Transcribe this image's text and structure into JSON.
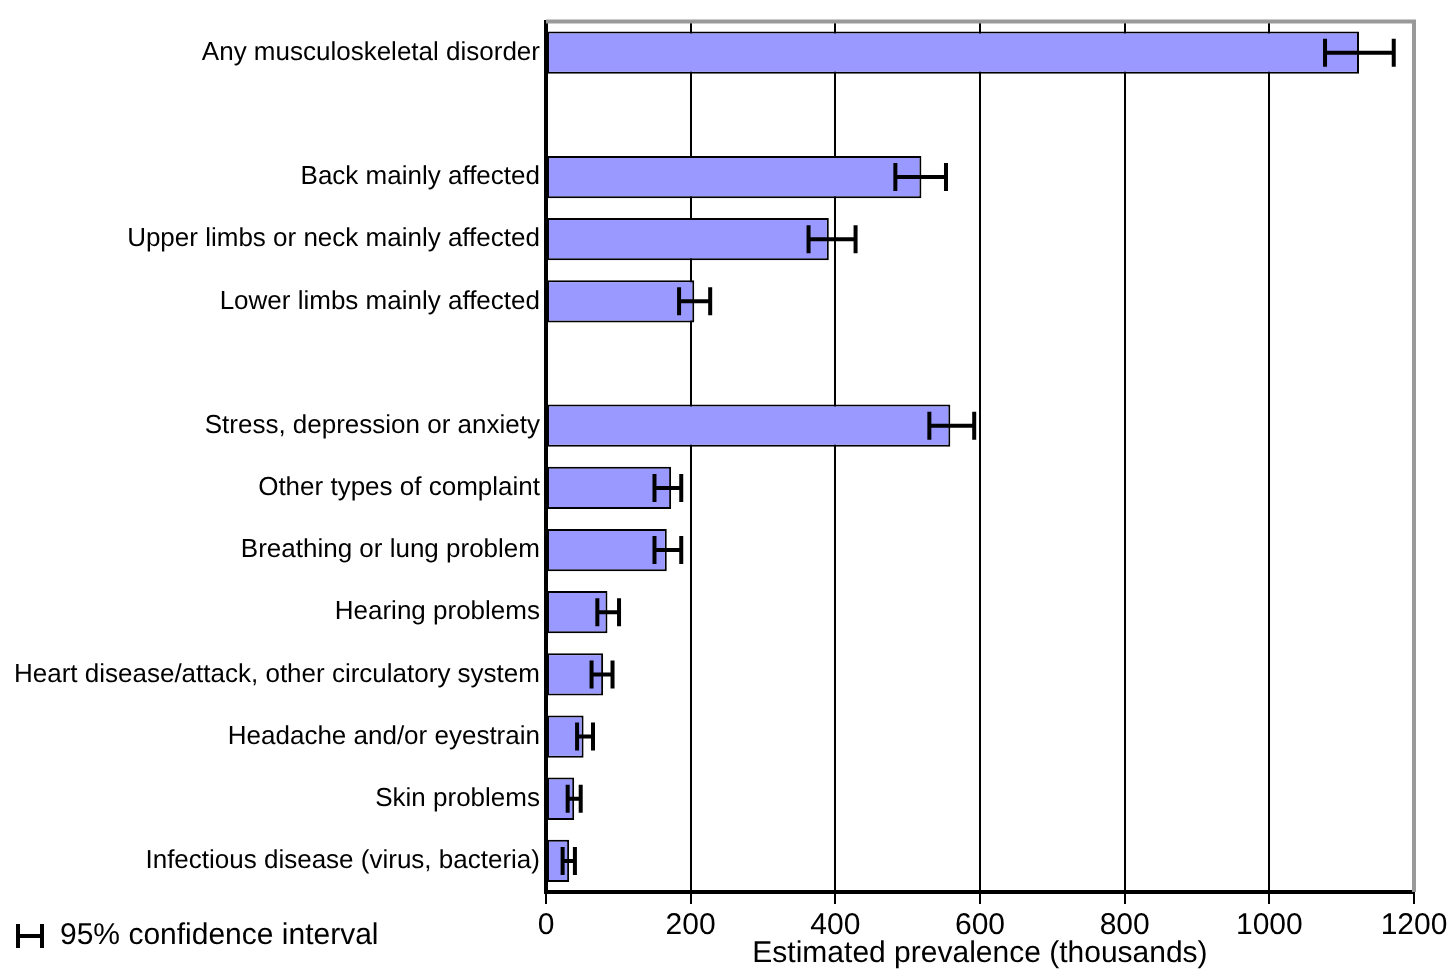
{
  "chart_data": {
    "type": "bar",
    "orientation": "horizontal",
    "xlabel": "Estimated prevalence (thousands)",
    "categories": [
      "Any musculoskeletal disorder",
      null,
      "Back mainly affected",
      "Upper limbs or neck mainly affected",
      "Lower limbs mainly affected",
      null,
      "Stress, depression or anxiety",
      "Other types of complaint",
      "Breathing or lung problem",
      "Hearing problems",
      "Heart disease/attack, other circulatory system",
      "Headache and/or eyestrain",
      "Skin problems",
      "Infectious disease (virus, bacteria)"
    ],
    "values": [
      1124,
      null,
      519,
      391,
      205,
      null,
      559,
      173,
      167,
      85,
      79,
      52,
      39,
      32
    ],
    "errors": [
      [
        1077,
        1172
      ],
      null,
      [
        483,
        553
      ],
      [
        363,
        428
      ],
      [
        184,
        227
      ],
      null,
      [
        530,
        592
      ],
      [
        150,
        187
      ],
      [
        150,
        187
      ],
      [
        71,
        101
      ],
      [
        63,
        92
      ],
      [
        43,
        65
      ],
      [
        30,
        48
      ],
      [
        23,
        40
      ]
    ],
    "color": "#9999ff",
    "xlim": [
      0,
      1200
    ],
    "xticks": [
      0,
      200,
      400,
      600,
      800,
      1000,
      1200
    ],
    "grid": "x",
    "legend": false,
    "annotations": [
      "95% confidence interval"
    ]
  }
}
